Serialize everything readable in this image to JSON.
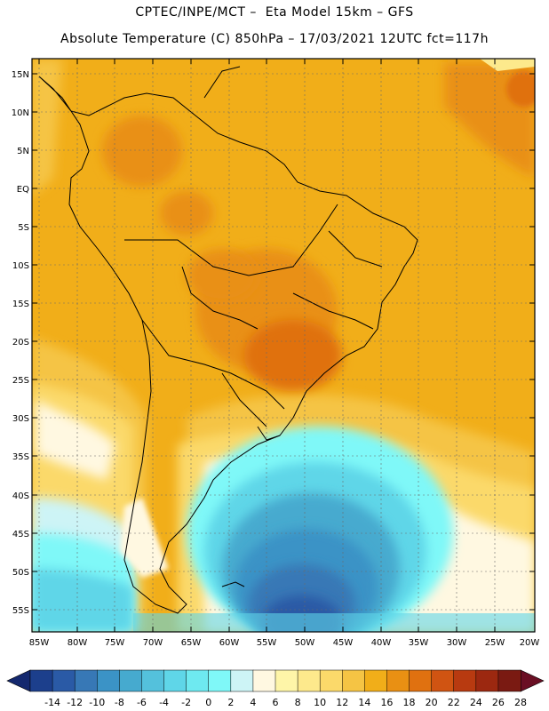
{
  "header": {
    "line1": "CPTEC/INPE/MCT –  Eta Model 15km – GFS",
    "line2": "Absolute Temperature (C) 850hPa – 17/03/2021 12UTC fct=117h"
  },
  "map": {
    "lat_labels": [
      "15N",
      "10N",
      "5N",
      "EQ",
      "5S",
      "10S",
      "15S",
      "20S",
      "25S",
      "30S",
      "35S",
      "40S",
      "45S",
      "50S",
      "55S"
    ],
    "lon_labels": [
      "85W",
      "80W",
      "75W",
      "70W",
      "65W",
      "60W",
      "55W",
      "50W",
      "45W",
      "40W",
      "35W",
      "30W",
      "25W",
      "20W"
    ]
  },
  "colorbar": {
    "labels": [
      "-14",
      "-12",
      "-10",
      "-8",
      "-6",
      "-4",
      "-2",
      "0",
      "2",
      "4",
      "6",
      "8",
      "10",
      "12",
      "14",
      "16",
      "18",
      "20",
      "22",
      "24",
      "26",
      "28"
    ],
    "colors": [
      "#1c3f8c",
      "#2a5aa6",
      "#3778b6",
      "#3b93c6",
      "#46aacf",
      "#54c1dc",
      "#5fd6e8",
      "#6ee9f0",
      "#7ff8f8",
      "#cdf4f6",
      "#fff8e1",
      "#fef5a8",
      "#fde98c",
      "#fbd96a",
      "#f5c444",
      "#f1ae19",
      "#e99013",
      "#e07110",
      "#d05412",
      "#b83a10",
      "#9c2810",
      "#7a1a12"
    ],
    "left_arrow_color": "#14286e",
    "right_arrow_color": "#6a0f24"
  }
}
